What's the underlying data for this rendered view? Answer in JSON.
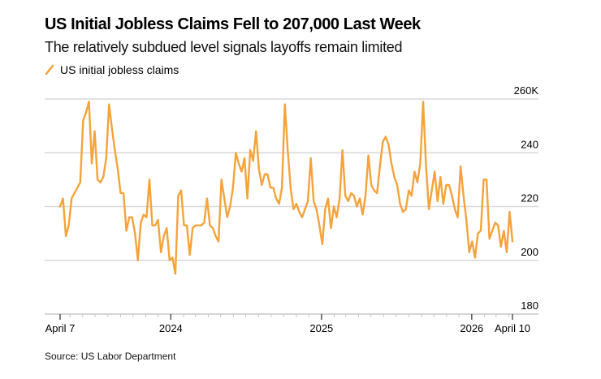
{
  "title": "US Initial Jobless Claims Fell to 207,000 Last Week",
  "subtitle": "The relatively subdued level signals layoffs remain limited",
  "source": "Source: US Labor Department",
  "colors": {
    "series": "#f5a33a",
    "grid": "#d9d9d9",
    "axis": "#c8c8c8",
    "tick": "#555555"
  },
  "chart_data": {
    "type": "line",
    "title": "US Initial Jobless Claims Fell to 207,000 Last Week",
    "subtitle": "The relatively subdued level signals layoffs remain limited",
    "xlabel": "",
    "ylabel": "",
    "unit": "thousands",
    "frequency": "weekly",
    "x_start": "2023-04-07",
    "x_end": "2026-04-10",
    "ylim": [
      180,
      260
    ],
    "yticks": [
      {
        "value": 260,
        "label": "260K"
      },
      {
        "value": 240,
        "label": "240"
      },
      {
        "value": 220,
        "label": "220"
      },
      {
        "value": 200,
        "label": "200"
      },
      {
        "value": 180,
        "label": "180"
      }
    ],
    "xticks": [
      {
        "date": "2023-04-07",
        "label": "April 7"
      },
      {
        "date": "2024-01-01",
        "label": "2024"
      },
      {
        "date": "2025-01-01",
        "label": "2025"
      },
      {
        "date": "2026-01-01",
        "label": "2026"
      },
      {
        "date": "2026-04-10",
        "label": "April 10"
      }
    ],
    "grid": true,
    "legend_position": "top-left",
    "series": [
      {
        "name": "US initial jobless claims",
        "values": [
          220,
          223,
          209,
          213,
          223,
          225,
          227,
          229,
          252,
          255,
          259,
          236,
          248,
          230,
          229,
          231,
          238,
          258,
          249,
          241,
          234,
          225,
          225,
          211,
          216,
          216,
          210,
          200,
          214,
          217,
          216,
          230,
          213,
          213,
          215,
          203,
          209,
          212,
          200,
          201,
          195,
          224,
          226,
          213,
          213,
          202,
          212,
          213,
          213,
          213,
          214,
          223,
          213,
          212,
          209,
          207,
          230,
          223,
          216,
          220,
          227,
          240,
          236,
          233,
          238,
          223,
          241,
          237,
          248,
          234,
          228,
          232,
          232,
          227,
          227,
          223,
          221,
          227,
          258,
          241,
          227,
          219,
          221,
          218,
          216,
          219,
          222,
          238,
          222,
          219,
          213,
          206,
          219,
          223,
          212,
          220,
          216,
          223,
          241,
          224,
          222,
          225,
          224,
          220,
          223,
          217,
          224,
          239,
          228,
          226,
          225,
          235,
          244,
          246,
          243,
          236,
          231,
          228,
          221,
          218,
          219,
          226,
          224,
          233,
          229,
          236,
          259,
          235,
          219,
          226,
          233,
          222,
          231,
          221,
          228,
          228,
          224,
          219,
          216,
          235,
          224,
          215,
          203,
          207,
          201,
          210,
          211,
          230,
          230,
          208,
          211,
          214,
          213,
          205,
          211,
          203,
          218,
          207
        ]
      }
    ]
  }
}
